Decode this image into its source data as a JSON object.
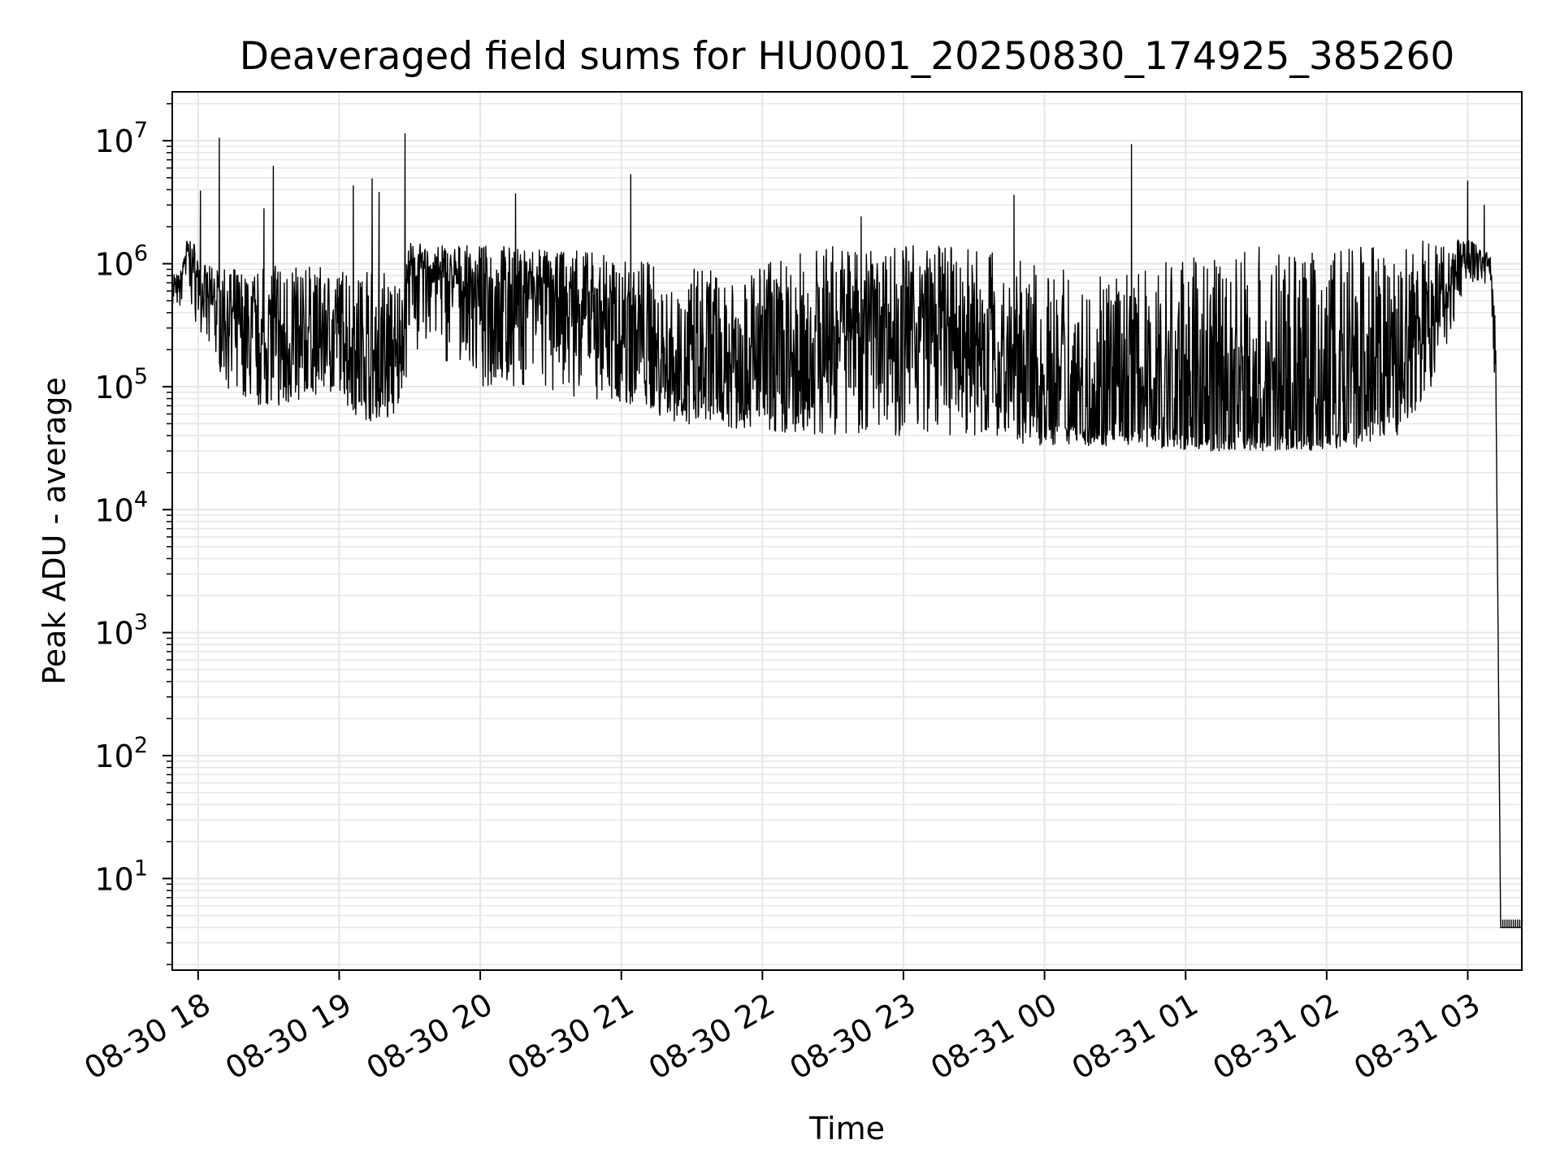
{
  "chart_data": {
    "type": "line",
    "title": "Deaveraged field sums for HU0001_20250830_174925_385260",
    "xlabel": "Time",
    "ylabel": "Peak ADU - average",
    "y_scale": "log",
    "ylim": [
      1.8,
      25000000
    ],
    "xlim": [
      "2025-08-30 17:49",
      "2025-08-31 03:23"
    ],
    "grid": true,
    "line_color": "#000000",
    "grid_color": "#e6e6e6",
    "x_ticks": [
      {
        "t": "2025-08-30 18:00",
        "label": "08-30 18"
      },
      {
        "t": "2025-08-30 19:00",
        "label": "08-30 19"
      },
      {
        "t": "2025-08-30 20:00",
        "label": "08-30 20"
      },
      {
        "t": "2025-08-30 21:00",
        "label": "08-30 21"
      },
      {
        "t": "2025-08-30 22:00",
        "label": "08-30 22"
      },
      {
        "t": "2025-08-30 23:00",
        "label": "08-30 23"
      },
      {
        "t": "2025-08-31 00:00",
        "label": "08-31 00"
      },
      {
        "t": "2025-08-31 01:00",
        "label": "08-31 01"
      },
      {
        "t": "2025-08-31 02:00",
        "label": "08-31 02"
      },
      {
        "t": "2025-08-31 03:00",
        "label": "08-31 03"
      }
    ],
    "y_ticks": [
      {
        "value": 10,
        "base": "10",
        "exp": "1"
      },
      {
        "value": 100,
        "base": "10",
        "exp": "2"
      },
      {
        "value": 1000,
        "base": "10",
        "exp": "3"
      },
      {
        "value": 10000,
        "base": "10",
        "exp": "4"
      },
      {
        "value": 100000,
        "base": "10",
        "exp": "5"
      },
      {
        "value": 1000000,
        "base": "10",
        "exp": "6"
      },
      {
        "value": 10000000,
        "base": "10",
        "exp": "7"
      }
    ],
    "series": [
      {
        "x": [
          "2025-08-30 17:49",
          "2025-08-30 17:52",
          "2025-08-30 17:55",
          "2025-08-30 17:58",
          "2025-08-30 18:02",
          "2025-08-30 18:08",
          "2025-08-30 18:15",
          "2025-08-30 18:25",
          "2025-08-30 18:35",
          "2025-08-30 18:45",
          "2025-08-30 18:55",
          "2025-08-30 19:05",
          "2025-08-30 19:15",
          "2025-08-30 19:25",
          "2025-08-30 19:30",
          "2025-08-30 19:40",
          "2025-08-30 19:50",
          "2025-08-30 20:00",
          "2025-08-30 20:15",
          "2025-08-30 20:30",
          "2025-08-30 20:45",
          "2025-08-30 21:00",
          "2025-08-30 21:15",
          "2025-08-30 21:30",
          "2025-08-30 21:45",
          "2025-08-30 22:00",
          "2025-08-30 22:15",
          "2025-08-30 22:30",
          "2025-08-30 22:45",
          "2025-08-30 23:00",
          "2025-08-30 23:15",
          "2025-08-30 23:30",
          "2025-08-30 23:45",
          "2025-08-31 00:00",
          "2025-08-31 00:15",
          "2025-08-31 00:30",
          "2025-08-31 00:45",
          "2025-08-31 01:00",
          "2025-08-31 01:15",
          "2025-08-31 01:30",
          "2025-08-31 01:45",
          "2025-08-31 02:00",
          "2025-08-31 02:15",
          "2025-08-31 02:30",
          "2025-08-31 02:45",
          "2025-08-31 02:55",
          "2025-08-31 03:00",
          "2025-08-31 03:05",
          "2025-08-31 03:10",
          "2025-08-31 03:12",
          "2025-08-31 03:14",
          "2025-08-31 03:23"
        ],
        "y": [
          600000,
          550000,
          1200000,
          900000,
          500000,
          400000,
          250000,
          150000,
          120000,
          140000,
          200000,
          150000,
          80000,
          100000,
          800000,
          700000,
          600000,
          500000,
          500000,
          400000,
          300000,
          200000,
          120000,
          70000,
          80000,
          90000,
          60000,
          200000,
          250000,
          200000,
          180000,
          120000,
          80000,
          50000,
          45000,
          45000,
          42000,
          40000,
          40000,
          40000,
          40000,
          40000,
          45000,
          80000,
          300000,
          800000,
          1100000,
          1100000,
          800000,
          100000,
          4,
          4
        ],
        "low": [
          450000,
          400000,
          600000,
          400000,
          200000,
          150000,
          80000,
          70000,
          70000,
          80000,
          90000,
          60000,
          50000,
          60000,
          150000,
          150000,
          120000,
          100000,
          100000,
          90000,
          80000,
          70000,
          60000,
          45000,
          45000,
          45000,
          40000,
          40000,
          40000,
          40000,
          40000,
          38000,
          35000,
          33000,
          33000,
          33000,
          32000,
          30000,
          30000,
          30000,
          30000,
          30000,
          32000,
          40000,
          100000,
          350000,
          700000,
          700000,
          500000,
          60000,
          4,
          4
        ],
        "high": [
          900000,
          800000,
          1600000,
          1500000,
          1000000,
          900000,
          900000,
          900000,
          1000000,
          1000000,
          900000,
          900000,
          1000000,
          700000,
          1500000,
          1400000,
          1400000,
          1400000,
          1400000,
          1300000,
          1300000,
          1200000,
          1000000,
          900000,
          1000000,
          1000000,
          1200000,
          1400000,
          1400000,
          1400000,
          1400000,
          1300000,
          1200000,
          1000000,
          800000,
          800000,
          900000,
          1200000,
          1300000,
          1400000,
          1400000,
          1400000,
          1400000,
          1500000,
          1600000,
          1600000,
          1600000,
          1400000,
          1200000,
          300000,
          4,
          4
        ],
        "spikes": [
          {
            "t": "2025-08-30 18:01",
            "v": 3900000
          },
          {
            "t": "2025-08-30 18:09",
            "v": 10500000
          },
          {
            "t": "2025-08-30 18:32",
            "v": 6200000
          },
          {
            "t": "2025-08-30 18:28",
            "v": 2800000
          },
          {
            "t": "2025-08-30 19:06",
            "v": 4300000
          },
          {
            "t": "2025-08-30 19:14",
            "v": 4900000
          },
          {
            "t": "2025-08-30 19:17",
            "v": 3800000
          },
          {
            "t": "2025-08-30 19:28",
            "v": 11400000
          },
          {
            "t": "2025-08-30 20:15",
            "v": 3700000
          },
          {
            "t": "2025-08-30 21:04",
            "v": 5300000
          },
          {
            "t": "2025-08-30 22:42",
            "v": 2400000
          },
          {
            "t": "2025-08-30 23:47",
            "v": 3600000
          },
          {
            "t": "2025-08-31 00:37",
            "v": 9300000
          },
          {
            "t": "2025-08-31 03:00",
            "v": 4700000
          },
          {
            "t": "2025-08-31 03:07",
            "v": 3000000
          }
        ]
      }
    ]
  }
}
